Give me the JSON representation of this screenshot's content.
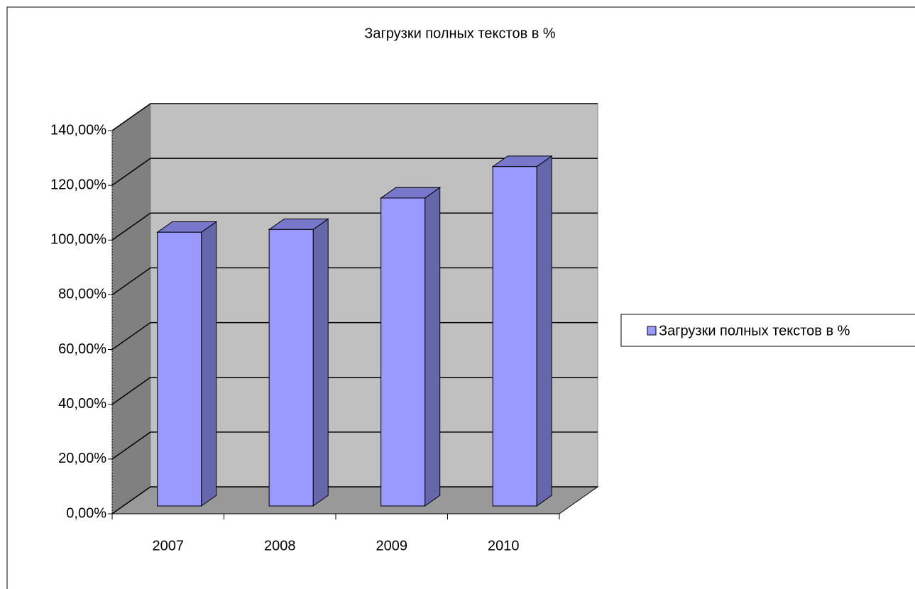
{
  "chart_data": {
    "type": "bar3d",
    "title": "Загрузки полных текстов в %",
    "categories": [
      "2007",
      "2008",
      "2009",
      "2010"
    ],
    "series": [
      {
        "name": "Загрузки полных текстов в %",
        "color": "#9999ff",
        "values": [
          100,
          101,
          112.5,
          124
        ]
      }
    ],
    "ylim": [
      0,
      140
    ],
    "yticks": [
      {
        "value": 0,
        "label": "0,00%"
      },
      {
        "value": 20,
        "label": "20,00%"
      },
      {
        "value": 40,
        "label": "40,00%"
      },
      {
        "value": 60,
        "label": "60,00%"
      },
      {
        "value": 80,
        "label": "80,00%"
      },
      {
        "value": 100,
        "label": "100,00%"
      },
      {
        "value": 120,
        "label": "120,00%"
      },
      {
        "value": 140,
        "label": "140,00%"
      }
    ],
    "grid": true,
    "legend": "right"
  }
}
